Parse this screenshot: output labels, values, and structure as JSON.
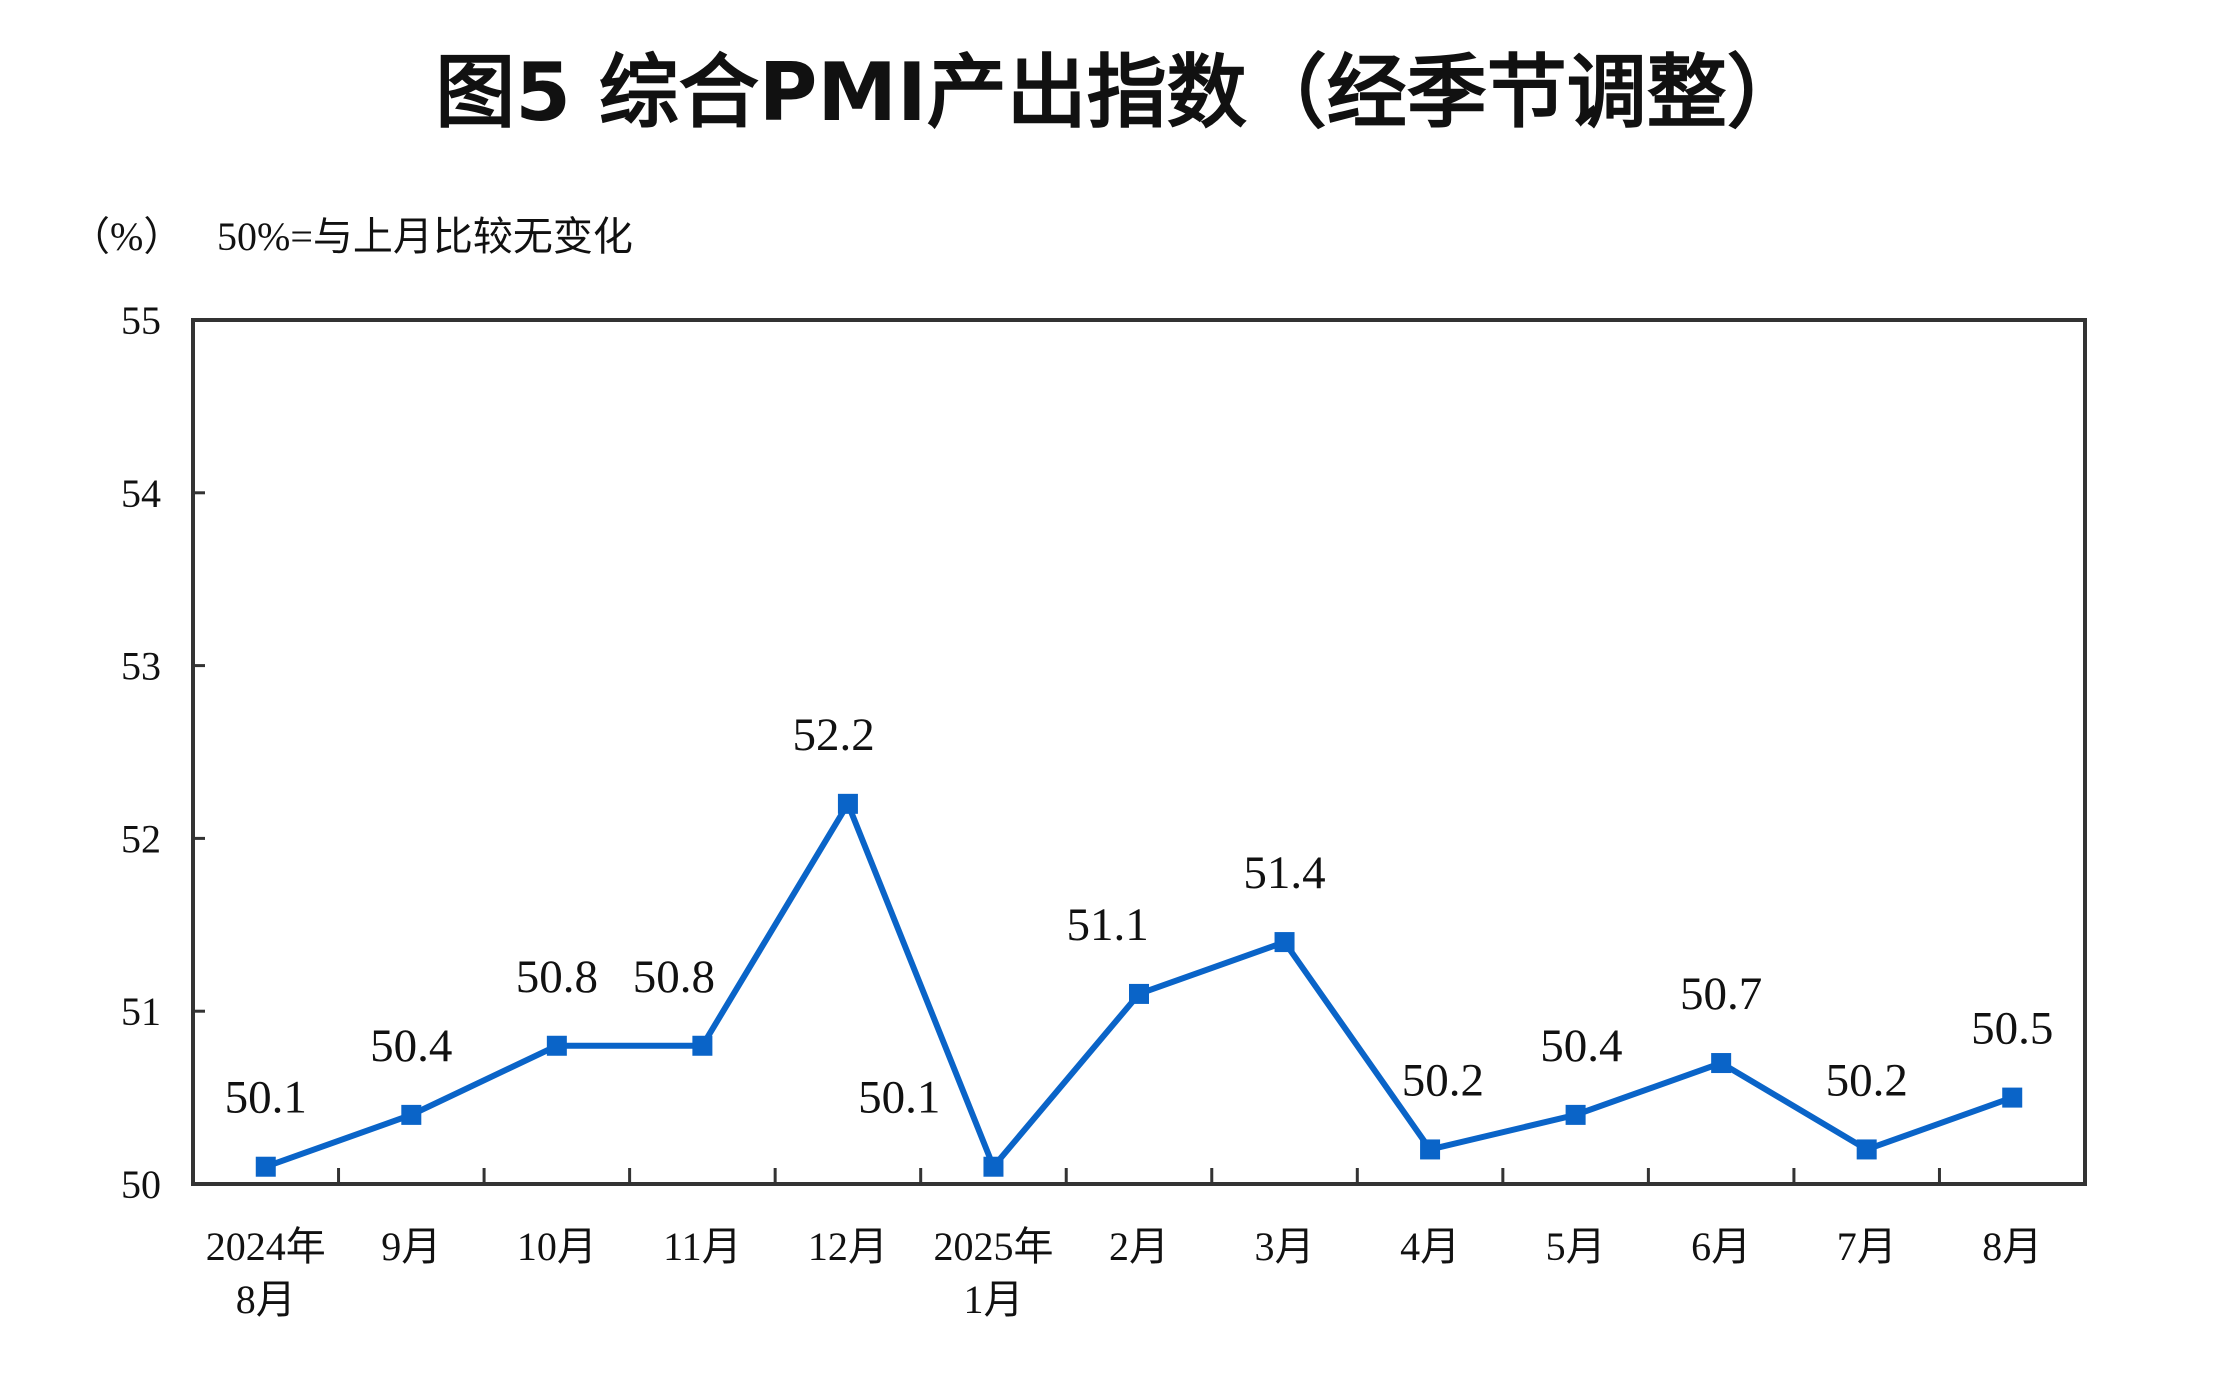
{
  "chart_data": {
    "type": "line",
    "title": "图5  综合PMI产出指数（经季节调整）",
    "unit_label": "（%）",
    "note": "50%=与上月比较无变化",
    "categories": [
      [
        "2024年",
        "8月"
      ],
      [
        "9月"
      ],
      [
        "10月"
      ],
      [
        "11月"
      ],
      [
        "12月"
      ],
      [
        "2025年",
        "1月"
      ],
      [
        "2月"
      ],
      [
        "3月"
      ],
      [
        "4月"
      ],
      [
        "5月"
      ],
      [
        "6月"
      ],
      [
        "7月"
      ],
      [
        "8月"
      ]
    ],
    "values": [
      50.1,
      50.4,
      50.8,
      50.8,
      52.2,
      50.1,
      51.1,
      51.4,
      50.2,
      50.4,
      50.7,
      50.2,
      50.5
    ],
    "data_labels": [
      "50.1",
      "50.4",
      "50.8",
      "50.8",
      "52.2",
      "50.1",
      "51.1",
      "51.4",
      "50.2",
      "50.4",
      "50.7",
      "50.2",
      "50.5"
    ],
    "ylim": [
      50,
      55
    ],
    "yticks": [
      "50",
      "51",
      "52",
      "53",
      "54",
      "55"
    ],
    "grid": false,
    "line_color": "#0a64c8",
    "marker": "square"
  }
}
